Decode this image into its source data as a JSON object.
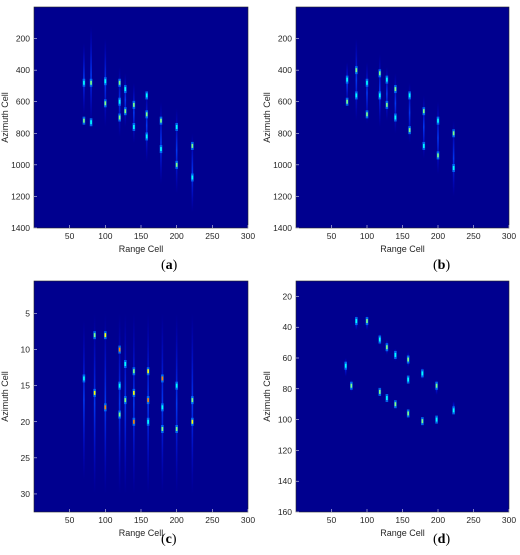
{
  "figure": {
    "panels": [
      {
        "caption_open": "(",
        "caption_letter": "a",
        "caption_close": ")"
      },
      {
        "caption_open": "(",
        "caption_letter": "b",
        "caption_close": ")"
      },
      {
        "caption_open": "(",
        "caption_letter": "c",
        "caption_close": ")"
      },
      {
        "caption_open": "(",
        "caption_letter": "d",
        "caption_close": ")"
      }
    ]
  },
  "colors": {
    "background": "#00008f",
    "cmap": [
      "#00008f",
      "#0000ff",
      "#0080ff",
      "#00ffff",
      "#80ff80",
      "#ffff00",
      "#ff8000",
      "#ff0000"
    ]
  },
  "chart_data": [
    {
      "type": "heatmap",
      "xlabel": "Range Cell",
      "ylabel": "Azimuth Cell",
      "xlim": [
        0,
        300
      ],
      "ylim": [
        1400,
        0
      ],
      "x_ticks": [
        50,
        100,
        150,
        200,
        250,
        300
      ],
      "y_ticks": [
        200,
        400,
        600,
        800,
        1000,
        1200,
        1400
      ],
      "columns": [
        {
          "x": 70,
          "y0": 230,
          "y1": 680,
          "bright": [
            480,
            720
          ]
        },
        {
          "x": 80,
          "y0": 120,
          "y1": 740,
          "bright": [
            480,
            730
          ]
        },
        {
          "x": 100,
          "y0": 200,
          "y1": 760,
          "bright": [
            470,
            610
          ]
        },
        {
          "x": 120,
          "y0": 380,
          "y1": 820,
          "bright": [
            480,
            600,
            700
          ]
        },
        {
          "x": 128,
          "y0": 420,
          "y1": 760,
          "bright": [
            520,
            660
          ]
        },
        {
          "x": 140,
          "y0": 480,
          "y1": 860,
          "bright": [
            620,
            760
          ]
        },
        {
          "x": 158,
          "y0": 520,
          "y1": 980,
          "bright": [
            560,
            680,
            820
          ]
        },
        {
          "x": 178,
          "y0": 600,
          "y1": 1120,
          "bright": [
            720,
            900
          ]
        },
        {
          "x": 200,
          "y0": 640,
          "y1": 1180,
          "bright": [
            760,
            1000
          ]
        },
        {
          "x": 222,
          "y0": 800,
          "y1": 1300,
          "bright": [
            880,
            1080
          ]
        }
      ]
    },
    {
      "type": "heatmap",
      "xlabel": "Range Cell",
      "ylabel": "Azimuth Cell",
      "xlim": [
        0,
        300
      ],
      "ylim": [
        1400,
        0
      ],
      "x_ticks": [
        50,
        100,
        150,
        200,
        250,
        300
      ],
      "y_ticks": [
        200,
        400,
        600,
        800,
        1000,
        1200,
        1400
      ],
      "columns": [
        {
          "x": 72,
          "y0": 350,
          "y1": 620,
          "bright": [
            460,
            600
          ]
        },
        {
          "x": 85,
          "y0": 200,
          "y1": 720,
          "bright": [
            400,
            560
          ]
        },
        {
          "x": 100,
          "y0": 350,
          "y1": 740,
          "bright": [
            480,
            680
          ]
        },
        {
          "x": 118,
          "y0": 300,
          "y1": 760,
          "bright": [
            420,
            560
          ]
        },
        {
          "x": 128,
          "y0": 380,
          "y1": 720,
          "bright": [
            460,
            620
          ]
        },
        {
          "x": 140,
          "y0": 420,
          "y1": 800,
          "bright": [
            520,
            700
          ]
        },
        {
          "x": 160,
          "y0": 480,
          "y1": 860,
          "bright": [
            560,
            780
          ]
        },
        {
          "x": 180,
          "y0": 560,
          "y1": 960,
          "bright": [
            660,
            880
          ]
        },
        {
          "x": 200,
          "y0": 600,
          "y1": 1060,
          "bright": [
            720,
            940
          ]
        },
        {
          "x": 222,
          "y0": 720,
          "y1": 1200,
          "bright": [
            800,
            1020
          ]
        }
      ]
    },
    {
      "type": "heatmap",
      "xlabel": "Range Cell",
      "ylabel": "Azimuth Cell",
      "xlim": [
        0,
        300
      ],
      "ylim": [
        32.5,
        0.5
      ],
      "x_ticks": [
        50,
        100,
        150,
        200,
        250,
        300
      ],
      "y_ticks": [
        5,
        10,
        15,
        20,
        25,
        30
      ],
      "columns": [
        {
          "x": 70,
          "y0": 6,
          "y1": 28,
          "bright": [
            14
          ]
        },
        {
          "x": 85,
          "y0": 5,
          "y1": 30,
          "bright": [
            8,
            16
          ]
        },
        {
          "x": 100,
          "y0": 5,
          "y1": 30,
          "bright": [
            8,
            18
          ]
        },
        {
          "x": 120,
          "y0": 5,
          "y1": 30,
          "bright": [
            10,
            15,
            19
          ]
        },
        {
          "x": 128,
          "y0": 5,
          "y1": 30,
          "bright": [
            12,
            17
          ]
        },
        {
          "x": 140,
          "y0": 5,
          "y1": 30,
          "bright": [
            13,
            16,
            20
          ]
        },
        {
          "x": 160,
          "y0": 5,
          "y1": 30,
          "bright": [
            13,
            17,
            20
          ]
        },
        {
          "x": 180,
          "y0": 5,
          "y1": 30,
          "bright": [
            14,
            18,
            21
          ]
        },
        {
          "x": 200,
          "y0": 5,
          "y1": 30,
          "bright": [
            15,
            21
          ]
        },
        {
          "x": 222,
          "y0": 5,
          "y1": 30,
          "bright": [
            17,
            20
          ]
        }
      ]
    },
    {
      "type": "heatmap",
      "xlabel": "Range Cell",
      "ylabel": "Azimuth Cell",
      "xlim": [
        0,
        300
      ],
      "ylim": [
        160,
        10
      ],
      "x_ticks": [
        50,
        100,
        150,
        200,
        250,
        300
      ],
      "y_ticks": [
        20,
        40,
        60,
        80,
        100,
        120,
        140,
        160
      ],
      "columns": [
        {
          "x": 70,
          "y0": 60,
          "y1": 72,
          "bright": [
            65
          ]
        },
        {
          "x": 78,
          "y0": 74,
          "y1": 82,
          "bright": [
            78
          ]
        },
        {
          "x": 85,
          "y0": 32,
          "y1": 42,
          "bright": [
            36
          ]
        },
        {
          "x": 100,
          "y0": 32,
          "y1": 42,
          "bright": [
            36
          ]
        },
        {
          "x": 118,
          "y0": 44,
          "y1": 52,
          "bright": [
            48,
            82
          ]
        },
        {
          "x": 128,
          "y0": 48,
          "y1": 58,
          "bright": [
            53,
            86
          ]
        },
        {
          "x": 140,
          "y0": 54,
          "y1": 62,
          "bright": [
            58,
            90
          ]
        },
        {
          "x": 158,
          "y0": 56,
          "y1": 66,
          "bright": [
            61,
            74,
            96
          ]
        },
        {
          "x": 178,
          "y0": 66,
          "y1": 74,
          "bright": [
            70,
            101
          ]
        },
        {
          "x": 198,
          "y0": 74,
          "y1": 84,
          "bright": [
            78,
            100
          ]
        },
        {
          "x": 222,
          "y0": 88,
          "y1": 96,
          "bright": [
            94
          ]
        }
      ]
    }
  ]
}
